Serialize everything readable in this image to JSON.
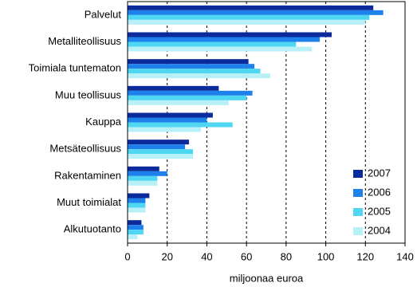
{
  "chart_data": {
    "type": "bar",
    "orientation": "horizontal",
    "x_label": "miljoonaa euroa",
    "categories": [
      "Palvelut",
      "Metalliteollisuus",
      "Toimiala tuntematon",
      "Muu teollisuus",
      "Kauppa",
      "Metsäteollisuus",
      "Rakentaminen",
      "Muut toimialat",
      "Alkutuotanto"
    ],
    "series": [
      {
        "name": "2007",
        "color": "#0b2a9c",
        "values": [
          124,
          103,
          61,
          46,
          43,
          31,
          16,
          11,
          7
        ]
      },
      {
        "name": "2006",
        "color": "#1e80ea",
        "values": [
          129,
          97,
          64,
          63,
          40,
          29,
          20,
          9,
          8
        ]
      },
      {
        "name": "2005",
        "color": "#4fd6f2",
        "values": [
          122,
          85,
          67,
          60,
          53,
          33,
          15,
          9,
          8
        ]
      },
      {
        "name": "2004",
        "color": "#b8f0f8",
        "values": [
          120,
          93,
          72,
          51,
          37,
          33,
          15,
          9,
          5
        ]
      }
    ],
    "xlim": [
      0,
      140
    ],
    "xticks": [
      0,
      20,
      40,
      60,
      80,
      100,
      120,
      140
    ],
    "grid": true,
    "legend": "lower right"
  }
}
